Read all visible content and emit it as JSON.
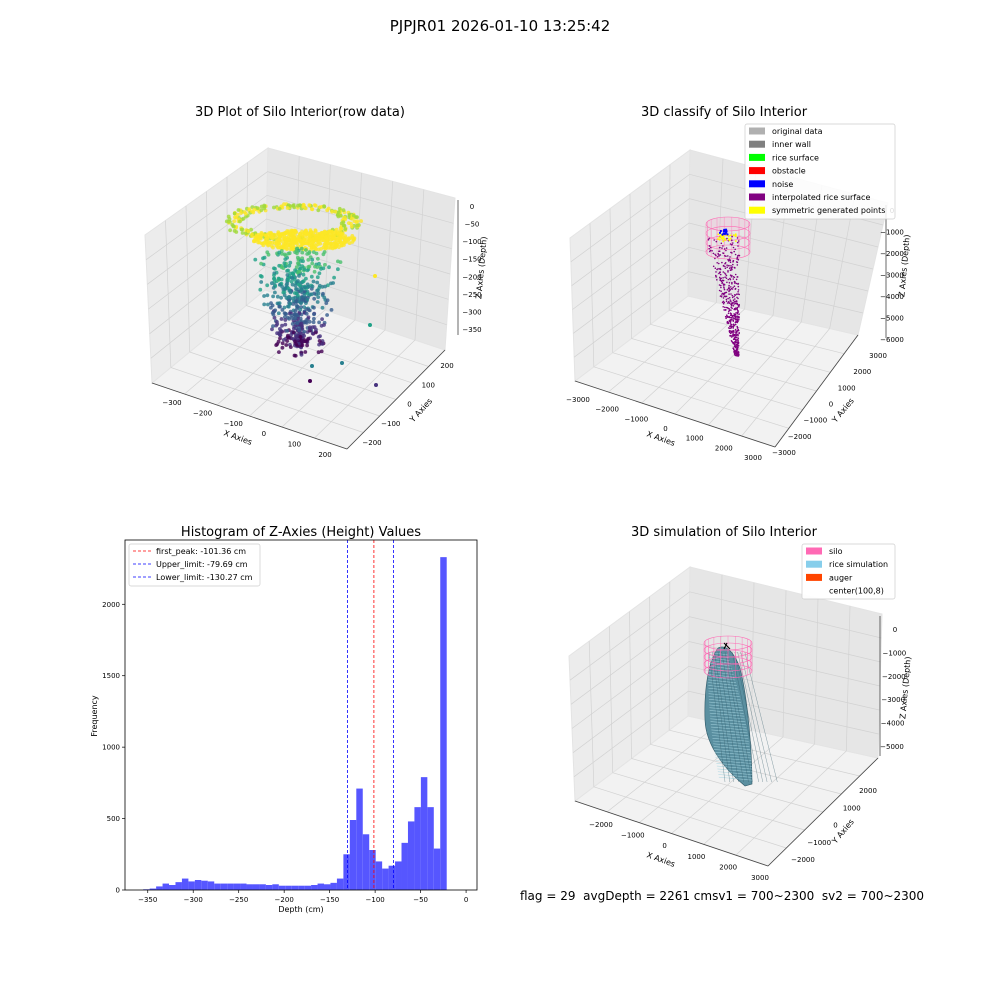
{
  "suptitle": "PJPJR01 2026-01-10 13:25:42",
  "footer": {
    "flag": "flag = 29",
    "avg": "avgDepth = 2261 cm",
    "sv1": "sv1 = 700~2300",
    "sv2": "sv2 = 700~2300"
  },
  "colors": {
    "hist_bar": "#4d4dff",
    "first_peak_line": "#ff0000",
    "limit_lines": "#0000ff",
    "silo": "#ff69b4",
    "rice_simulation": "#87ceeb",
    "auger": "#ff4500",
    "original_data": "#b0b0b0",
    "inner_wall": "#808080",
    "rice_surface": "#00ff00",
    "obstacle": "#ff0000",
    "noise": "#0000ff",
    "interpolated_rice_surface": "#800080",
    "symmetric_generated_points": "#ffff00"
  },
  "chart_data": [
    {
      "id": "raw",
      "type": "scatter",
      "title": "3D Plot of Silo Interior(row data)",
      "xlabel": "X Axies",
      "ylabel": "Y Axies",
      "zlabel": "Z Axies (Depth)",
      "x_ticks": [
        "−300",
        "−200",
        "−100",
        "0",
        "100",
        "200"
      ],
      "y_ticks": [
        "−200",
        "−100",
        "0",
        "100",
        "200"
      ],
      "z_ticks": [
        "0",
        "−50",
        "−100",
        "−150",
        "−200",
        "−250",
        "−300",
        "−350"
      ],
      "xlim": [
        -350,
        250
      ],
      "ylim": [
        -250,
        250
      ],
      "zlim": [
        -370,
        10
      ]
    },
    {
      "id": "classify",
      "type": "scatter",
      "title": "3D classify of Silo Interior",
      "xlabel": "X Axies",
      "ylabel": "Y Axies",
      "zlabel": "Z Axies (Depth)",
      "x_ticks": [
        "−3000",
        "−2000",
        "−1000",
        "0",
        "1000",
        "2000",
        "3000"
      ],
      "y_ticks": [
        "−3000",
        "−2000",
        "−1000",
        "0",
        "1000",
        "2000",
        "3000"
      ],
      "z_ticks": [
        "0",
        "−1000",
        "−2000",
        "−3000",
        "−4000",
        "−5000",
        "−6000"
      ],
      "xlim": [
        -3000,
        3000
      ],
      "ylim": [
        -3000,
        3000
      ],
      "zlim": [
        -6000,
        0
      ],
      "legend_position": "top-right",
      "legend": [
        {
          "label": "original data",
          "color": "#b0b0b0"
        },
        {
          "label": "inner wall",
          "color": "#808080"
        },
        {
          "label": "rice surface",
          "color": "#00ff00"
        },
        {
          "label": "obstacle",
          "color": "#ff0000"
        },
        {
          "label": "noise",
          "color": "#0000ff"
        },
        {
          "label": "interpolated rice surface",
          "color": "#800080"
        },
        {
          "label": "symmetric generated points",
          "color": "#ffff00"
        }
      ]
    },
    {
      "id": "hist",
      "type": "bar",
      "title": "Histogram of Z-Axies (Height) Values",
      "xlabel": "Depth (cm)",
      "ylabel": "Frequency",
      "x_ticks": [
        "−350",
        "−300",
        "−250",
        "−200",
        "−150",
        "−100",
        "−50",
        "0"
      ],
      "y_ticks": [
        "0",
        "500",
        "1000",
        "1500",
        "2000"
      ],
      "xlim": [
        -375,
        12
      ],
      "ylim": [
        0,
        2450
      ],
      "bin_width": 7.1,
      "bin_start": -355,
      "values": [
        5,
        10,
        25,
        45,
        35,
        55,
        80,
        60,
        70,
        65,
        60,
        45,
        45,
        45,
        45,
        45,
        40,
        40,
        40,
        35,
        40,
        30,
        30,
        30,
        30,
        30,
        35,
        45,
        40,
        50,
        80,
        250,
        490,
        710,
        390,
        280,
        200,
        150,
        170,
        200,
        330,
        480,
        580,
        790,
        580,
        290,
        2330
      ],
      "vlines": [
        {
          "x": -101.36,
          "label": "first_peak: -101.36 cm",
          "color": "#ff0000"
        },
        {
          "x": -79.69,
          "label": "Upper_limit: -79.69 cm",
          "color": "#0000ff"
        },
        {
          "x": -130.27,
          "label": "Lower_limit: -130.27 cm",
          "color": "#0000ff"
        }
      ],
      "legend_position": "top-left"
    },
    {
      "id": "sim",
      "type": "surface",
      "title": "3D simulation of Silo Interior",
      "xlabel": "X Axies",
      "ylabel": "Y Axies",
      "zlabel": "Z Axies (Depth)",
      "x_ticks": [
        "−2000",
        "−1000",
        "0",
        "1000",
        "2000",
        "3000"
      ],
      "y_ticks": [
        "−2000",
        "−1000",
        "0",
        "1000",
        "2000"
      ],
      "z_ticks": [
        "0",
        "−1000",
        "−2000",
        "−3000",
        "−4000",
        "−5000"
      ],
      "xlim": [
        -2500,
        3000
      ],
      "ylim": [
        -2500,
        2500
      ],
      "zlim": [
        -5500,
        500
      ],
      "legend_position": "top-right",
      "legend": [
        {
          "label": "silo",
          "color": "#ff69b4"
        },
        {
          "label": "rice simulation",
          "color": "#87ceeb"
        },
        {
          "label": "auger",
          "color": "#ff4500"
        },
        {
          "label": "center(100,8)",
          "color": ""
        }
      ]
    }
  ]
}
